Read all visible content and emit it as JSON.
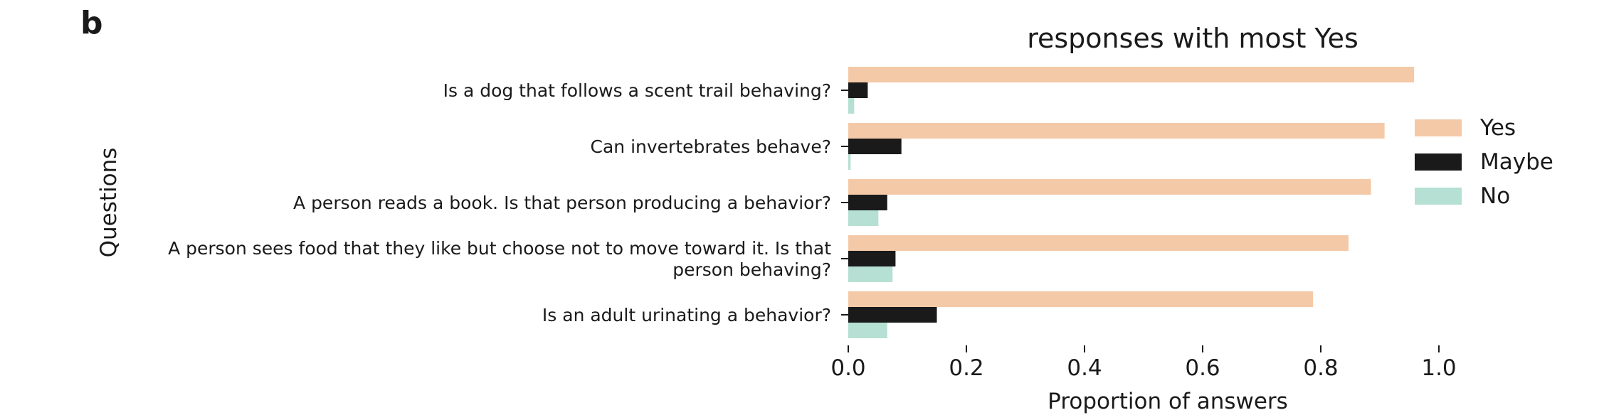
{
  "panel_label": "b",
  "colors": {
    "Yes": "#f4c9a8",
    "Maybe": "#1a1a1a",
    "No": "#b5e0d3"
  },
  "chart_data": {
    "type": "bar",
    "orientation": "horizontal",
    "title": "responses with most Yes",
    "xlabel": "Proportion of answers",
    "ylabel": "Questions",
    "xlim": [
      0,
      1.0
    ],
    "xticks": [
      "0.0",
      "0.2",
      "0.4",
      "0.6",
      "0.8",
      "1.0"
    ],
    "categories": [
      [
        "Is a dog that follows a scent trail behaving?"
      ],
      [
        "Can invertebrates behave?"
      ],
      [
        "A person reads a book. Is that person producing a behavior?"
      ],
      [
        "A person sees food that they like but choose not to move toward it. Is that",
        "person behaving?"
      ],
      [
        "Is an adult urinating a behavior?"
      ]
    ],
    "series": [
      {
        "name": "Yes",
        "values": [
          0.958,
          0.908,
          0.885,
          0.847,
          0.787
        ]
      },
      {
        "name": "Maybe",
        "values": [
          0.033,
          0.09,
          0.066,
          0.08,
          0.15
        ]
      },
      {
        "name": "No",
        "values": [
          0.01,
          0.004,
          0.051,
          0.075,
          0.066
        ]
      }
    ],
    "legend_position": "upper-right-outside",
    "grid": false
  }
}
